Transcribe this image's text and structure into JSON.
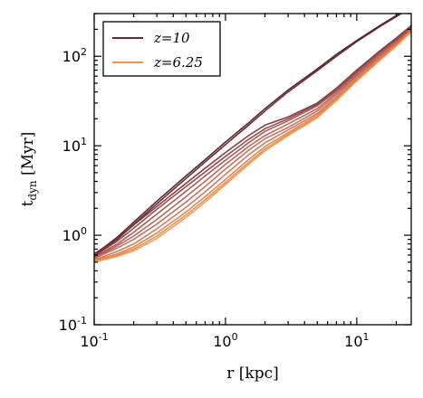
{
  "chart_data": {
    "type": "line",
    "xlabel": "r [kpc]",
    "ylabel": "t_dyn [Myr]",
    "x_scale": "log",
    "y_scale": "log",
    "xlim": [
      0.1,
      26
    ],
    "ylim": [
      0.1,
      300
    ],
    "x_ticks": [
      {
        "value": 0.1,
        "base": "10",
        "exp": "-1"
      },
      {
        "value": 1,
        "base": "10",
        "exp": "0"
      },
      {
        "value": 10,
        "base": "10",
        "exp": "1"
      }
    ],
    "y_ticks": [
      {
        "value": 0.1,
        "base": "10",
        "exp": "-1"
      },
      {
        "value": 1,
        "base": "10",
        "exp": "0"
      },
      {
        "value": 10,
        "base": "10",
        "exp": "1"
      },
      {
        "value": 100,
        "base": "10",
        "exp": "2"
      }
    ],
    "legend": {
      "placement": "top-left",
      "entries": [
        {
          "label": "z=10",
          "color": "#6b2a32"
        },
        {
          "label": "z=6.25",
          "color": "#f0944a"
        }
      ]
    },
    "x": [
      0.1,
      0.15,
      0.2,
      0.3,
      0.5,
      0.7,
      1.0,
      1.5,
      2,
      3,
      5,
      7,
      10,
      15,
      20,
      26
    ],
    "series": [
      {
        "color": "#4a1018",
        "values": [
          0.6,
          0.95,
          1.4,
          2.4,
          4.6,
          7.0,
          11.0,
          18,
          26,
          42,
          72,
          105,
          150,
          220,
          285,
          360
        ]
      },
      {
        "color": "#5a1a22",
        "values": [
          0.58,
          0.9,
          1.32,
          2.25,
          4.3,
          6.6,
          10.3,
          17,
          24.5,
          40,
          69,
          100,
          146,
          215,
          278,
          350
        ]
      },
      {
        "color": "#7a2a30",
        "values": [
          0.62,
          0.92,
          1.3,
          2.1,
          3.8,
          5.6,
          8.4,
          13,
          17,
          21,
          30,
          44,
          70,
          115,
          160,
          220
        ]
      },
      {
        "color": "#8e3a3a",
        "values": [
          0.59,
          0.86,
          1.2,
          1.95,
          3.5,
          5.1,
          7.6,
          11.8,
          15.5,
          20,
          29,
          42,
          67,
          112,
          155,
          215
        ]
      },
      {
        "color": "#a04a44",
        "values": [
          0.57,
          0.8,
          1.08,
          1.72,
          3.1,
          4.6,
          6.9,
          10.8,
          14.5,
          19,
          28,
          41,
          65,
          108,
          150,
          210
        ]
      },
      {
        "color": "#b0584c",
        "values": [
          0.56,
          0.76,
          0.98,
          1.5,
          2.7,
          4.0,
          6.2,
          9.8,
          13,
          17.5,
          26,
          39,
          62,
          104,
          146,
          205
        ]
      },
      {
        "color": "#c06050",
        "values": [
          0.55,
          0.72,
          0.9,
          1.33,
          2.35,
          3.5,
          5.5,
          8.9,
          12,
          16,
          24.5,
          37,
          60,
          100,
          142,
          200
        ]
      },
      {
        "color": "#d06c4c",
        "values": [
          0.53,
          0.66,
          0.8,
          1.18,
          2.05,
          3.05,
          4.8,
          7.9,
          10.8,
          15,
          23,
          35,
          57,
          97,
          138,
          196
        ]
      },
      {
        "color": "#de7a44",
        "values": [
          0.52,
          0.62,
          0.74,
          1.06,
          1.82,
          2.7,
          4.2,
          7.0,
          9.8,
          14,
          22,
          34,
          55,
          94,
          134,
          192
        ]
      },
      {
        "color": "#e8863c",
        "values": [
          0.51,
          0.6,
          0.7,
          0.98,
          1.68,
          2.5,
          3.9,
          6.5,
          9.2,
          13.4,
          21,
          33,
          54,
          92,
          132,
          190
        ]
      },
      {
        "color": "#f0944a",
        "values": [
          0.5,
          0.58,
          0.67,
          0.92,
          1.58,
          2.35,
          3.7,
          6.2,
          8.8,
          13,
          20.5,
          32,
          53,
          90,
          130,
          188
        ]
      }
    ]
  }
}
